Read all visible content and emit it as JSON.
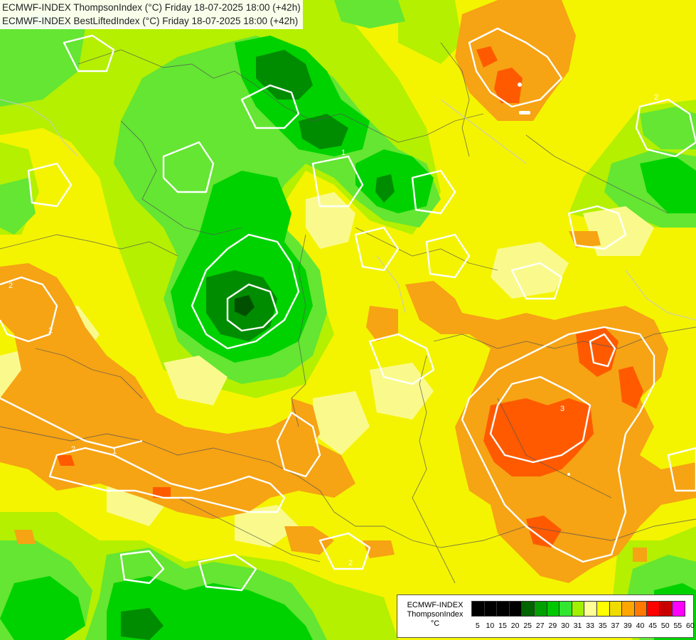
{
  "title_lines": [
    "ECMWF-INDEX ThompsonIndex (°C) Friday 18-07-2025 18:00 (+42h)",
    "ECMWF-INDEX BestLiftedIndex (°C) Friday 18-07-2025 18:00 (+42h)"
  ],
  "legend": {
    "model": "ECMWF-INDEX",
    "parameter": "ThompsonIndex",
    "unit": "°C",
    "levels": [
      "5",
      "10",
      "15",
      "20",
      "25",
      "27",
      "29",
      "30",
      "31",
      "33",
      "35",
      "37",
      "39",
      "40",
      "45",
      "50",
      "55",
      "60"
    ],
    "colors": [
      "#000000",
      "#000000",
      "#000000",
      "#000000",
      "#006400",
      "#00a000",
      "#00c800",
      "#32e632",
      "#a0f000",
      "#ffff96",
      "#ffff00",
      "#f0dc00",
      "#ffa500",
      "#ff7800",
      "#ff0000",
      "#c80000",
      "#ff00ff",
      "#c800ff",
      "#8c00ff",
      "#6400ff",
      "#0000ff"
    ]
  },
  "map_colors": {
    "orange": "#f6a314",
    "dark_orange": "#ff5a00",
    "light_yellow": "#fafa8c",
    "yellow": "#f4f400",
    "yellow_green": "#b4f000",
    "light_green": "#64e632",
    "green": "#00d200",
    "dark_green": "#008c00",
    "darkest_green": "#005000"
  },
  "contour_labels": [
    "1",
    "2",
    "3"
  ]
}
